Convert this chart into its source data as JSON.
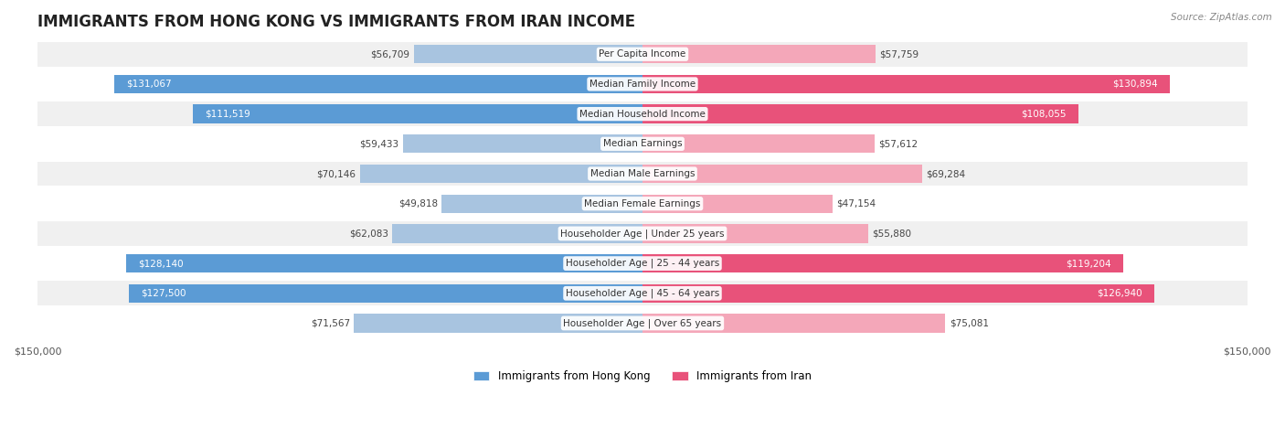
{
  "title": "IMMIGRANTS FROM HONG KONG VS IMMIGRANTS FROM IRAN INCOME",
  "source": "Source: ZipAtlas.com",
  "categories": [
    "Per Capita Income",
    "Median Family Income",
    "Median Household Income",
    "Median Earnings",
    "Median Male Earnings",
    "Median Female Earnings",
    "Householder Age | Under 25 years",
    "Householder Age | 25 - 44 years",
    "Householder Age | 45 - 64 years",
    "Householder Age | Over 65 years"
  ],
  "hk_values": [
    56709,
    131067,
    111519,
    59433,
    70146,
    49818,
    62083,
    128140,
    127500,
    71567
  ],
  "iran_values": [
    57759,
    130894,
    108055,
    57612,
    69284,
    47154,
    55880,
    119204,
    126940,
    75081
  ],
  "hk_labels": [
    "$56,709",
    "$131,067",
    "$111,519",
    "$59,433",
    "$70,146",
    "$49,818",
    "$62,083",
    "$128,140",
    "$127,500",
    "$71,567"
  ],
  "iran_labels": [
    "$57,759",
    "$130,894",
    "$108,055",
    "$57,612",
    "$69,284",
    "$47,154",
    "$55,880",
    "$119,204",
    "$126,940",
    "$75,081"
  ],
  "max_value": 150000,
  "hk_color_light": "#a8c4e0",
  "hk_color_solid": "#5b9bd5",
  "iran_color_light": "#f4a7b9",
  "iran_color_solid": "#e8527a",
  "hk_threshold": 90000,
  "iran_threshold": 90000,
  "row_bg_color": "#f0f0f0",
  "row_bg_alt": "#ffffff",
  "label_bg_color": "#ffffff",
  "label_bg_alpha": 0.85
}
